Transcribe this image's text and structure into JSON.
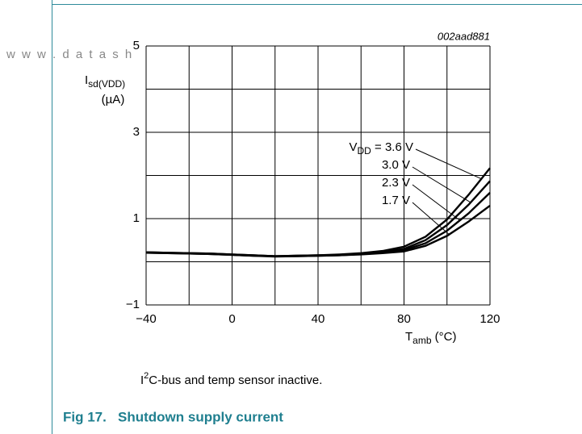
{
  "chart_data": {
    "type": "line",
    "watermark": "w w w . d a t a s h",
    "annotation": "002aad881",
    "ylabel": {
      "main": "I",
      "sub": "sd(VDD)",
      "unit": "(µA)"
    },
    "xlabel": {
      "main": "T",
      "sub": "amb",
      "unit": " (°C)"
    },
    "legend_prefix": {
      "main": "V",
      "sub": "DD",
      "eq": " = "
    },
    "caption": {
      "main": "I",
      "sup": "2",
      "rest": "C-bus and temp sensor inactive."
    },
    "figure_title": "Fig 17.   Shutdown supply current",
    "x": [
      -40,
      -30,
      -20,
      -10,
      0,
      10,
      20,
      30,
      40,
      50,
      60,
      70,
      80,
      90,
      100,
      110,
      120
    ],
    "series": [
      {
        "name": "3.6 V",
        "color": "#000000",
        "values": [
          0.22,
          0.21,
          0.2,
          0.19,
          0.17,
          0.15,
          0.13,
          0.14,
          0.15,
          0.17,
          0.2,
          0.25,
          0.35,
          0.58,
          0.98,
          1.55,
          2.17
        ]
      },
      {
        "name": "3.0 V",
        "color": "#000000",
        "values": [
          0.22,
          0.21,
          0.2,
          0.19,
          0.17,
          0.15,
          0.13,
          0.14,
          0.15,
          0.16,
          0.19,
          0.23,
          0.3,
          0.5,
          0.85,
          1.32,
          1.87
        ]
      },
      {
        "name": "2.3 V",
        "color": "#000000",
        "values": [
          0.21,
          0.2,
          0.19,
          0.18,
          0.16,
          0.14,
          0.13,
          0.13,
          0.14,
          0.15,
          0.18,
          0.21,
          0.27,
          0.43,
          0.72,
          1.12,
          1.6
        ]
      },
      {
        "name": "1.7 V",
        "color": "#000000",
        "values": [
          0.21,
          0.2,
          0.19,
          0.18,
          0.16,
          0.14,
          0.12,
          0.13,
          0.14,
          0.15,
          0.17,
          0.2,
          0.24,
          0.37,
          0.6,
          0.93,
          1.3
        ]
      }
    ],
    "xlim": [
      -40,
      120
    ],
    "ylim": [
      -1,
      5
    ],
    "xticks": [
      {
        "value": -40,
        "label": "−40"
      },
      0,
      40,
      80,
      120
    ],
    "yticks": [
      {
        "value": -1,
        "label": "−1"
      },
      1,
      3,
      5
    ],
    "xgrid": [
      -40,
      -20,
      0,
      20,
      40,
      60,
      80,
      100,
      120
    ],
    "ygrid": [
      -1,
      0,
      1,
      2,
      3,
      4,
      5
    ],
    "grid": true
  }
}
